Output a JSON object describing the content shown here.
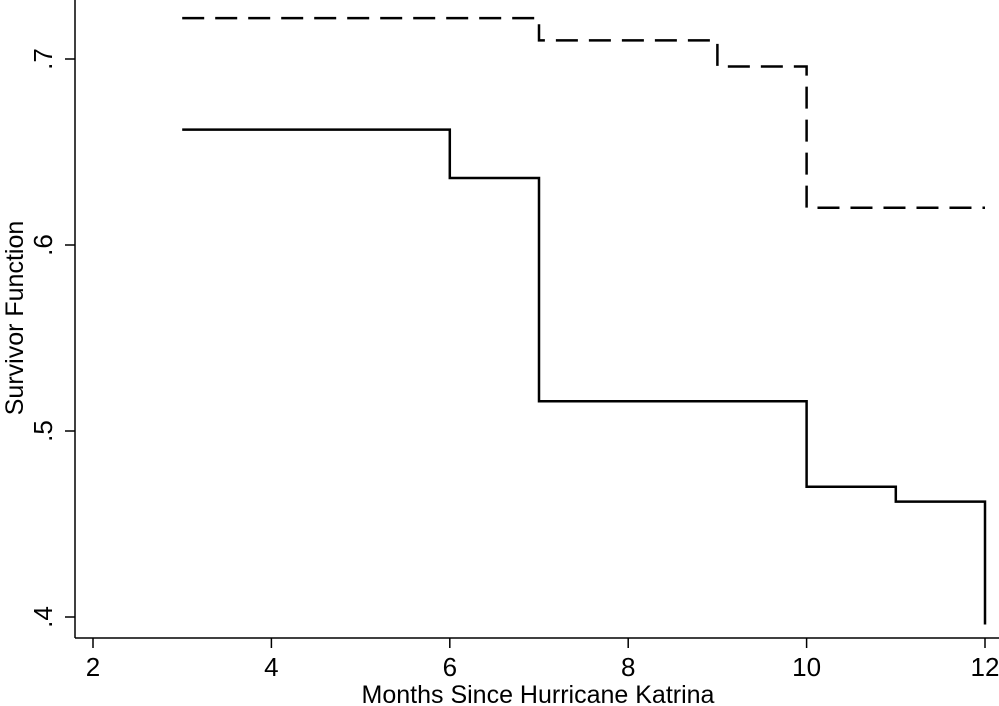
{
  "chart_data": {
    "type": "line",
    "step": true,
    "xlabel": "Months Since Hurricane Katrina",
    "ylabel": "Survivor Function",
    "xlim": [
      2,
      12
    ],
    "ylim": [
      0.4,
      0.72
    ],
    "x_ticks": [
      2,
      4,
      6,
      8,
      10,
      12
    ],
    "x_tick_labels": [
      "2",
      "4",
      "6",
      "8",
      "10",
      "12"
    ],
    "y_ticks": [
      0.4,
      0.5,
      0.6,
      0.7
    ],
    "y_tick_labels": [
      ".4",
      ".5",
      ".6",
      ".7"
    ],
    "grid": false,
    "series": [
      {
        "line_style": "dashed",
        "color": "#000000",
        "x": [
          3,
          7,
          9,
          10,
          12
        ],
        "y": [
          0.722,
          0.71,
          0.696,
          0.62,
          0.62
        ]
      },
      {
        "line_style": "solid",
        "color": "#000000",
        "x": [
          3,
          6,
          7,
          10,
          11,
          12
        ],
        "y": [
          0.662,
          0.636,
          0.516,
          0.47,
          0.462,
          0.396
        ]
      }
    ]
  }
}
